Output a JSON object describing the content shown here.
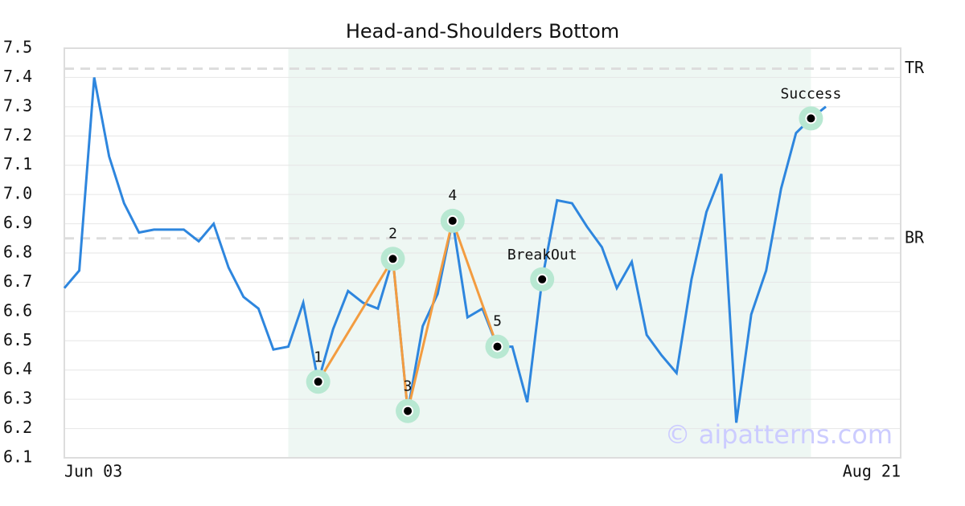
{
  "chart_data": {
    "type": "line",
    "title": "Head-and-Shoulders Bottom",
    "categories": [
      "Jun 03",
      null,
      null,
      null,
      null,
      null,
      null,
      null,
      null,
      null,
      null,
      null,
      null,
      null,
      null,
      null,
      null,
      null,
      null,
      null,
      null,
      null,
      null,
      null,
      null,
      null,
      null,
      null,
      null,
      null,
      null,
      null,
      null,
      null,
      null,
      null,
      null,
      null,
      null,
      null,
      null,
      null,
      null,
      null,
      null,
      null,
      null,
      null,
      null,
      null,
      null,
      "Aug 21"
    ],
    "series": [
      {
        "color": "#2e86de",
        "values": [
          6.68,
          6.74,
          7.4,
          7.13,
          6.97,
          6.87,
          6.88,
          6.88,
          6.88,
          6.84,
          6.9,
          6.75,
          6.65,
          6.61,
          6.47,
          6.48,
          6.63,
          6.36,
          6.54,
          6.67,
          6.63,
          6.61,
          6.78,
          6.26,
          6.55,
          6.66,
          6.91,
          6.58,
          6.61,
          6.48,
          6.48,
          6.29,
          6.71,
          6.98,
          6.97,
          6.89,
          6.82,
          6.68,
          6.77,
          6.52,
          6.45,
          6.39,
          6.71,
          6.94,
          7.07,
          6.22,
          6.59,
          6.74,
          7.02,
          7.21,
          7.26,
          7.3
        ]
      }
    ],
    "pattern_color": "#f39c40",
    "pattern_points": [
      {
        "label": "1",
        "index": 17
      },
      {
        "label": "2",
        "index": 22
      },
      {
        "label": "3",
        "index": 23
      },
      {
        "label": "4",
        "index": 26
      },
      {
        "label": "5",
        "index": 29
      }
    ],
    "signal_points": [
      {
        "label": "BreakOut",
        "index": 32
      },
      {
        "label": "Success",
        "index": 50
      }
    ],
    "levels": [
      {
        "label": "TR",
        "value": 7.43
      },
      {
        "label": "BR",
        "value": 6.85
      }
    ],
    "highlight": {
      "from": 15,
      "to": 50,
      "color": "#eef7f3"
    },
    "ylim": [
      6.1,
      7.5
    ],
    "yticks": [
      6.1,
      6.2,
      6.3,
      6.4,
      6.5,
      6.6,
      6.7,
      6.8,
      6.9,
      {
        "value": 7.0,
        "label": "7.0"
      },
      7.1,
      7.2,
      7.3,
      7.4,
      7.5
    ],
    "grid": true,
    "watermark": "© aipatterns.com"
  }
}
